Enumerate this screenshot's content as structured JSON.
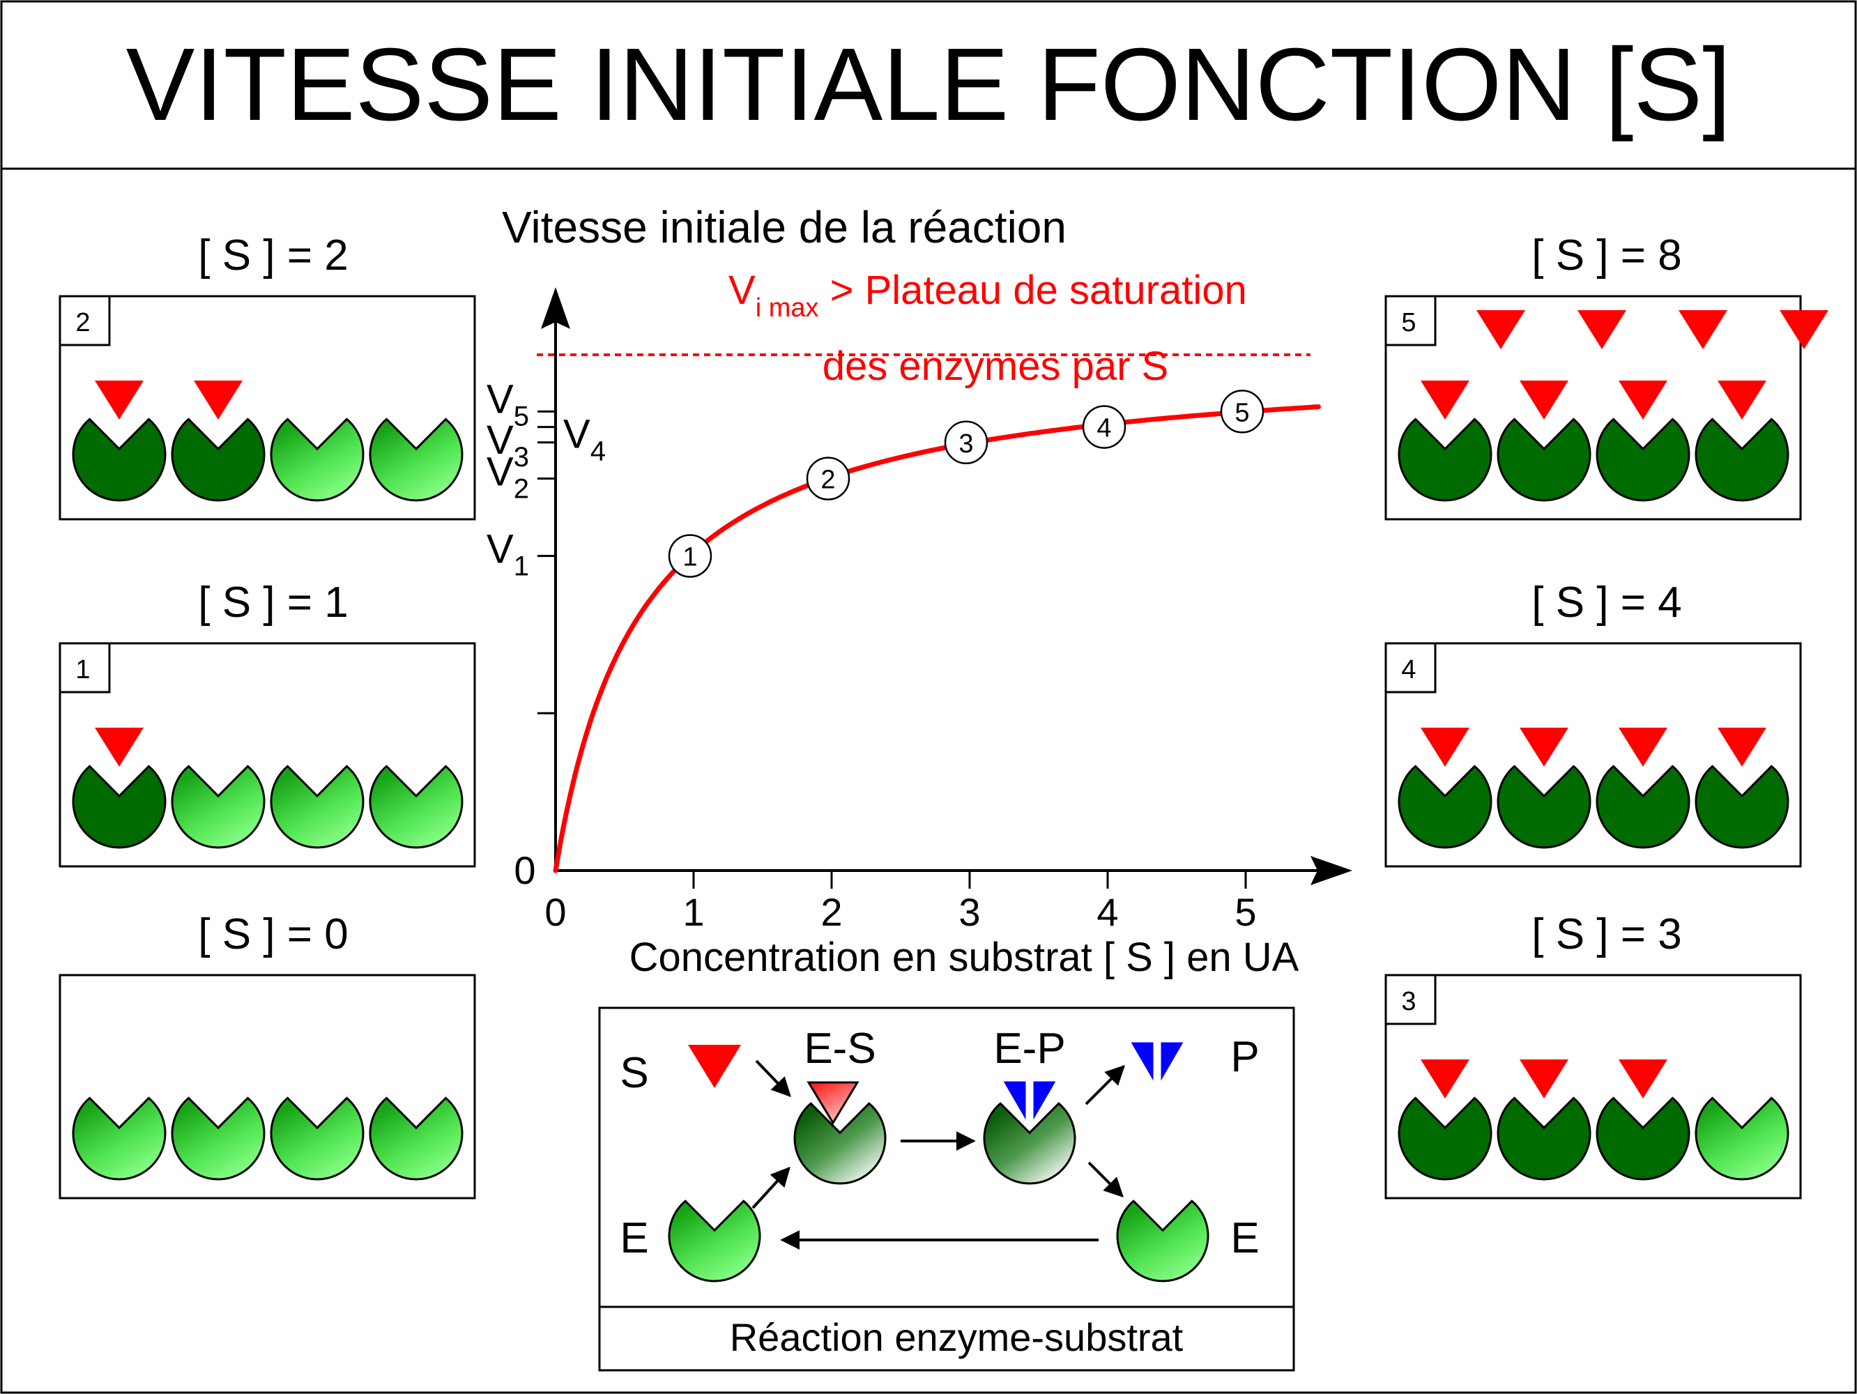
{
  "title": "VITESSE INITIALE FONCTION [S]",
  "colors": {
    "enzyme_free_light": "#66ff66",
    "enzyme_free_dark": "#17a317",
    "enzyme_bound": "#006b00",
    "substrate": "#ff0000",
    "product": "#0000ff",
    "curve": "#ff0000",
    "line": "#000000"
  },
  "panels": [
    {
      "label": "[ S ] = 2",
      "badge": "2",
      "bound": 2,
      "free_substrate": 0
    },
    {
      "label": "[ S ] = 1",
      "badge": "1",
      "bound": 1,
      "free_substrate": 0
    },
    {
      "label": "[ S ] = 0",
      "badge": "",
      "bound": 0,
      "free_substrate": 0
    },
    {
      "label": "[ S ] = 8",
      "badge": "5",
      "bound": 4,
      "free_substrate": 4
    },
    {
      "label": "[ S ] = 4",
      "badge": "4",
      "bound": 4,
      "free_substrate": 0
    },
    {
      "label": "[ S ] = 3",
      "badge": "3",
      "bound": 3,
      "free_substrate": 0
    }
  ],
  "chart_data": {
    "type": "line",
    "ylabel": "Vitesse initiale de la réaction",
    "xlabel": "Concentration en substrat [ S ] en UA",
    "x_ticks": [
      "0",
      "1",
      "2",
      "3",
      "4",
      "5"
    ],
    "y_zero_label": "0",
    "y_labels": [
      {
        "name": "V1",
        "main": "V",
        "sub": "1"
      },
      {
        "name": "V2",
        "main": "V",
        "sub": "2"
      },
      {
        "name": "V3",
        "main": "V",
        "sub": "3"
      },
      {
        "name": "V4",
        "main": "V",
        "sub": "4"
      },
      {
        "name": "V5",
        "main": "V",
        "sub": "5"
      }
    ],
    "xlim": [
      0,
      5.5
    ],
    "ylim": [
      0,
      1.0
    ],
    "vmax": 1.0,
    "half_saturation": 0.62,
    "points": [
      {
        "label": "1",
        "x": 1,
        "y": 0.61
      },
      {
        "label": "2",
        "x": 2,
        "y": 0.76
      },
      {
        "label": "3",
        "x": 3,
        "y": 0.83
      },
      {
        "label": "4",
        "x": 4,
        "y": 0.86
      },
      {
        "label": "5",
        "x": 5,
        "y": 0.89
      }
    ],
    "annotation": {
      "vimax_main": "V",
      "vimax_sub": "i max",
      "line1_rest": " > Plateau de saturation",
      "line2": "des enzymes par S"
    }
  },
  "reaction": {
    "caption": "Réaction enzyme-substrat",
    "label_s": "S",
    "label_es": "E-S",
    "label_ep": "E-P",
    "label_p": "P",
    "label_e_left": "E",
    "label_e_right": "E"
  }
}
